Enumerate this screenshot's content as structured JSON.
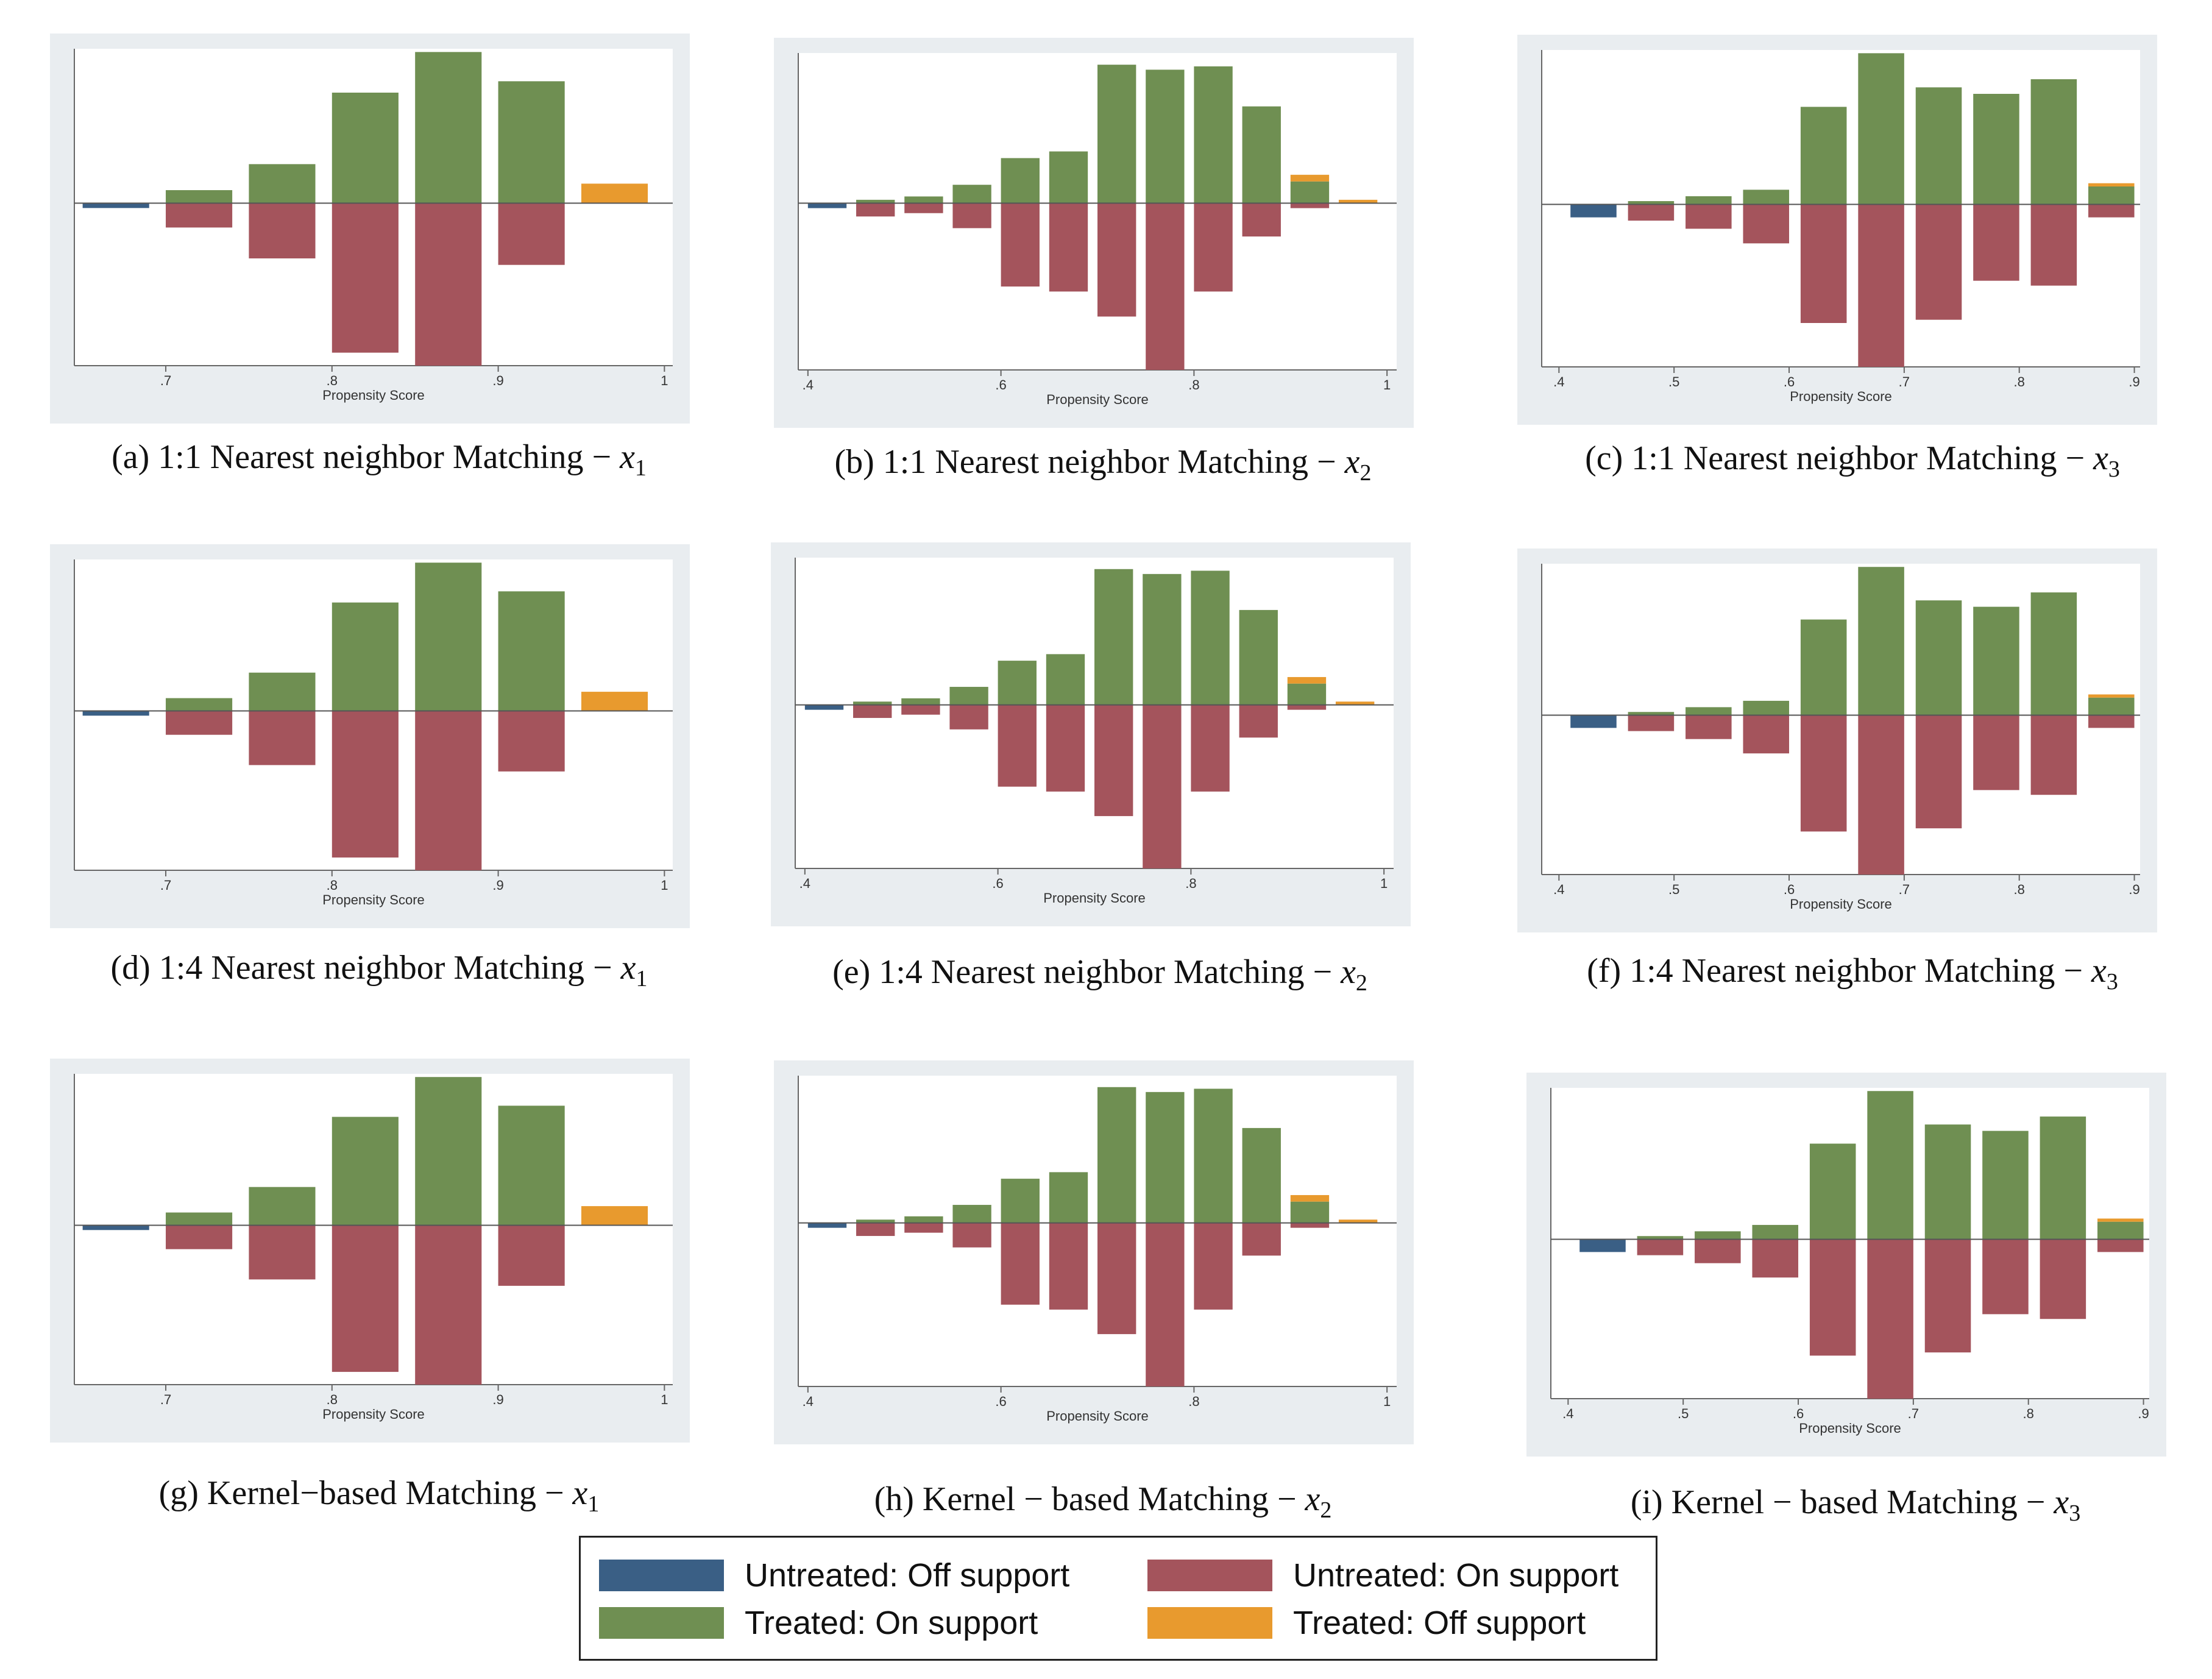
{
  "colors": {
    "untreated_off": "#3a5f85",
    "untreated_on": "#a4545c",
    "treated_on": "#6f8f52",
    "treated_off": "#e89a2e"
  },
  "legend": {
    "items": [
      {
        "label": "Untreated: Off support",
        "color_key": "untreated_off"
      },
      {
        "label": "Untreated: On support",
        "color_key": "untreated_on"
      },
      {
        "label": "Treated: On support",
        "color_key": "treated_on"
      },
      {
        "label": "Treated: Off support",
        "color_key": "treated_off"
      }
    ]
  },
  "chart_data": [
    {
      "type": "bar",
      "panel": "a",
      "caption": {
        "letter": "(a)",
        "text": "1:1 Nearest neighbor  Matching",
        "var": "x",
        "sub": "1"
      },
      "xlabel": "Propensity Score",
      "xlim": [
        0.645,
        1.005
      ],
      "ylim": [
        -1.0,
        0.95
      ],
      "xticks": [
        0.7,
        0.8,
        0.9,
        1.0
      ],
      "xtick_labels": [
        ".7",
        ".8",
        ".9",
        "1"
      ],
      "bin_width": 0.04,
      "bars": [
        {
          "x": 0.67,
          "treated_on": 0,
          "treated_off": 0,
          "untreated_on": 0,
          "untreated_off": 0.03
        },
        {
          "x": 0.72,
          "treated_on": 0.08,
          "treated_off": 0,
          "untreated_on": 0.15,
          "untreated_off": 0
        },
        {
          "x": 0.77,
          "treated_on": 0.24,
          "treated_off": 0,
          "untreated_on": 0.34,
          "untreated_off": 0
        },
        {
          "x": 0.82,
          "treated_on": 0.68,
          "treated_off": 0,
          "untreated_on": 0.92,
          "untreated_off": 0
        },
        {
          "x": 0.87,
          "treated_on": 0.93,
          "treated_off": 0,
          "untreated_on": 1.0,
          "untreated_off": 0
        },
        {
          "x": 0.92,
          "treated_on": 0.75,
          "treated_off": 0,
          "untreated_on": 0.38,
          "untreated_off": 0
        },
        {
          "x": 0.97,
          "treated_on": 0,
          "treated_off": 0.12,
          "untreated_on": 0,
          "untreated_off": 0
        }
      ]
    },
    {
      "type": "bar",
      "panel": "b",
      "caption": {
        "letter": "(b)",
        "text": "1:1 Nearest neighbor  Matching",
        "var": "x",
        "sub": "2"
      },
      "xlabel": "Propensity Score",
      "xlim": [
        0.39,
        1.01
      ],
      "ylim": [
        -1.0,
        0.9
      ],
      "xticks": [
        0.4,
        0.6,
        0.8,
        1.0
      ],
      "xtick_labels": [
        ".4",
        ".6",
        ".8",
        "1"
      ],
      "bin_width": 0.04,
      "bars": [
        {
          "x": 0.42,
          "treated_on": 0,
          "treated_off": 0,
          "untreated_on": 0,
          "untreated_off": 0.03
        },
        {
          "x": 0.47,
          "treated_on": 0.02,
          "treated_off": 0,
          "untreated_on": 0.08,
          "untreated_off": 0
        },
        {
          "x": 0.52,
          "treated_on": 0.04,
          "treated_off": 0,
          "untreated_on": 0.06,
          "untreated_off": 0
        },
        {
          "x": 0.57,
          "treated_on": 0.11,
          "treated_off": 0,
          "untreated_on": 0.15,
          "untreated_off": 0
        },
        {
          "x": 0.62,
          "treated_on": 0.27,
          "treated_off": 0,
          "untreated_on": 0.5,
          "untreated_off": 0
        },
        {
          "x": 0.67,
          "treated_on": 0.31,
          "treated_off": 0,
          "untreated_on": 0.53,
          "untreated_off": 0
        },
        {
          "x": 0.72,
          "treated_on": 0.83,
          "treated_off": 0,
          "untreated_on": 0.68,
          "untreated_off": 0
        },
        {
          "x": 0.77,
          "treated_on": 0.8,
          "treated_off": 0,
          "untreated_on": 1.0,
          "untreated_off": 0
        },
        {
          "x": 0.82,
          "treated_on": 0.82,
          "treated_off": 0,
          "untreated_on": 0.53,
          "untreated_off": 0
        },
        {
          "x": 0.87,
          "treated_on": 0.58,
          "treated_off": 0,
          "untreated_on": 0.2,
          "untreated_off": 0
        },
        {
          "x": 0.92,
          "treated_on": 0.13,
          "treated_off": 0.04,
          "untreated_on": 0.03,
          "untreated_off": 0
        },
        {
          "x": 0.97,
          "treated_on": 0,
          "treated_off": 0.02,
          "untreated_on": 0,
          "untreated_off": 0
        }
      ]
    },
    {
      "type": "bar",
      "panel": "c",
      "caption": {
        "letter": "(c)",
        "text": "1:1 Nearest neighbor  Matching",
        "var": "x",
        "sub": "3"
      },
      "xlabel": "Propensity Score",
      "xlim": [
        0.385,
        0.905
      ],
      "ylim": [
        -1.0,
        0.95
      ],
      "xticks": [
        0.4,
        0.5,
        0.6,
        0.7,
        0.8,
        0.9
      ],
      "xtick_labels": [
        ".4",
        ".5",
        ".6",
        ".7",
        ".8",
        ".9"
      ],
      "bin_width": 0.04,
      "bars": [
        {
          "x": 0.43,
          "treated_on": 0,
          "treated_off": 0,
          "untreated_on": 0,
          "untreated_off": 0.08
        },
        {
          "x": 0.48,
          "treated_on": 0.02,
          "treated_off": 0,
          "untreated_on": 0.1,
          "untreated_off": 0
        },
        {
          "x": 0.53,
          "treated_on": 0.05,
          "treated_off": 0,
          "untreated_on": 0.15,
          "untreated_off": 0
        },
        {
          "x": 0.58,
          "treated_on": 0.09,
          "treated_off": 0,
          "untreated_on": 0.24,
          "untreated_off": 0
        },
        {
          "x": 0.63,
          "treated_on": 0.6,
          "treated_off": 0,
          "untreated_on": 0.73,
          "untreated_off": 0
        },
        {
          "x": 0.68,
          "treated_on": 0.93,
          "treated_off": 0,
          "untreated_on": 1.0,
          "untreated_off": 0
        },
        {
          "x": 0.73,
          "treated_on": 0.72,
          "treated_off": 0,
          "untreated_on": 0.71,
          "untreated_off": 0
        },
        {
          "x": 0.78,
          "treated_on": 0.68,
          "treated_off": 0,
          "untreated_on": 0.47,
          "untreated_off": 0
        },
        {
          "x": 0.83,
          "treated_on": 0.77,
          "treated_off": 0,
          "untreated_on": 0.5,
          "untreated_off": 0
        },
        {
          "x": 0.88,
          "treated_on": 0.11,
          "treated_off": 0.02,
          "untreated_on": 0.08,
          "untreated_off": 0
        }
      ]
    },
    {
      "type": "bar",
      "panel": "d",
      "caption": {
        "letter": "(d)",
        "text": "1:4 Nearest neighbor  Matching",
        "var": "x",
        "sub": "1"
      },
      "xlabel": "Propensity Score",
      "xlim": [
        0.645,
        1.005
      ],
      "ylim": [
        -1.0,
        0.95
      ],
      "xticks": [
        0.7,
        0.8,
        0.9,
        1.0
      ],
      "xtick_labels": [
        ".7",
        ".8",
        ".9",
        "1"
      ],
      "bin_width": 0.04,
      "bars": [
        {
          "x": 0.67,
          "treated_on": 0,
          "treated_off": 0,
          "untreated_on": 0,
          "untreated_off": 0.03
        },
        {
          "x": 0.72,
          "treated_on": 0.08,
          "treated_off": 0,
          "untreated_on": 0.15,
          "untreated_off": 0
        },
        {
          "x": 0.77,
          "treated_on": 0.24,
          "treated_off": 0,
          "untreated_on": 0.34,
          "untreated_off": 0
        },
        {
          "x": 0.82,
          "treated_on": 0.68,
          "treated_off": 0,
          "untreated_on": 0.92,
          "untreated_off": 0
        },
        {
          "x": 0.87,
          "treated_on": 0.93,
          "treated_off": 0,
          "untreated_on": 1.0,
          "untreated_off": 0
        },
        {
          "x": 0.92,
          "treated_on": 0.75,
          "treated_off": 0,
          "untreated_on": 0.38,
          "untreated_off": 0
        },
        {
          "x": 0.97,
          "treated_on": 0,
          "treated_off": 0.12,
          "untreated_on": 0,
          "untreated_off": 0
        }
      ]
    },
    {
      "type": "bar",
      "panel": "e",
      "caption": {
        "letter": "(e)",
        "text": "1:4 Nearest neighbor  Matching",
        "var": "x",
        "sub": "2"
      },
      "xlabel": "Propensity Score",
      "xlim": [
        0.39,
        1.01
      ],
      "ylim": [
        -1.0,
        0.9
      ],
      "xticks": [
        0.4,
        0.6,
        0.8,
        1.0
      ],
      "xtick_labels": [
        ".4",
        ".6",
        ".8",
        "1"
      ],
      "bin_width": 0.04,
      "bars": [
        {
          "x": 0.42,
          "treated_on": 0,
          "treated_off": 0,
          "untreated_on": 0,
          "untreated_off": 0.03
        },
        {
          "x": 0.47,
          "treated_on": 0.02,
          "treated_off": 0,
          "untreated_on": 0.08,
          "untreated_off": 0
        },
        {
          "x": 0.52,
          "treated_on": 0.04,
          "treated_off": 0,
          "untreated_on": 0.06,
          "untreated_off": 0
        },
        {
          "x": 0.57,
          "treated_on": 0.11,
          "treated_off": 0,
          "untreated_on": 0.15,
          "untreated_off": 0
        },
        {
          "x": 0.62,
          "treated_on": 0.27,
          "treated_off": 0,
          "untreated_on": 0.5,
          "untreated_off": 0
        },
        {
          "x": 0.67,
          "treated_on": 0.31,
          "treated_off": 0,
          "untreated_on": 0.53,
          "untreated_off": 0
        },
        {
          "x": 0.72,
          "treated_on": 0.83,
          "treated_off": 0,
          "untreated_on": 0.68,
          "untreated_off": 0
        },
        {
          "x": 0.77,
          "treated_on": 0.8,
          "treated_off": 0,
          "untreated_on": 1.0,
          "untreated_off": 0
        },
        {
          "x": 0.82,
          "treated_on": 0.82,
          "treated_off": 0,
          "untreated_on": 0.53,
          "untreated_off": 0
        },
        {
          "x": 0.87,
          "treated_on": 0.58,
          "treated_off": 0,
          "untreated_on": 0.2,
          "untreated_off": 0
        },
        {
          "x": 0.92,
          "treated_on": 0.13,
          "treated_off": 0.04,
          "untreated_on": 0.03,
          "untreated_off": 0
        },
        {
          "x": 0.97,
          "treated_on": 0,
          "treated_off": 0.02,
          "untreated_on": 0,
          "untreated_off": 0
        }
      ]
    },
    {
      "type": "bar",
      "panel": "f",
      "caption": {
        "letter": "(f)",
        "text": "1:4 Nearest neighbor  Matching",
        "var": "x",
        "sub": "3"
      },
      "xlabel": "Propensity Score",
      "xlim": [
        0.385,
        0.905
      ],
      "ylim": [
        -1.0,
        0.95
      ],
      "xticks": [
        0.4,
        0.5,
        0.6,
        0.7,
        0.8,
        0.9
      ],
      "xtick_labels": [
        ".4",
        ".5",
        ".6",
        ".7",
        ".8",
        ".9"
      ],
      "bin_width": 0.04,
      "bars": [
        {
          "x": 0.43,
          "treated_on": 0,
          "treated_off": 0,
          "untreated_on": 0,
          "untreated_off": 0.08
        },
        {
          "x": 0.48,
          "treated_on": 0.02,
          "treated_off": 0,
          "untreated_on": 0.1,
          "untreated_off": 0
        },
        {
          "x": 0.53,
          "treated_on": 0.05,
          "treated_off": 0,
          "untreated_on": 0.15,
          "untreated_off": 0
        },
        {
          "x": 0.58,
          "treated_on": 0.09,
          "treated_off": 0,
          "untreated_on": 0.24,
          "untreated_off": 0
        },
        {
          "x": 0.63,
          "treated_on": 0.6,
          "treated_off": 0,
          "untreated_on": 0.73,
          "untreated_off": 0
        },
        {
          "x": 0.68,
          "treated_on": 0.93,
          "treated_off": 0,
          "untreated_on": 1.0,
          "untreated_off": 0
        },
        {
          "x": 0.73,
          "treated_on": 0.72,
          "treated_off": 0,
          "untreated_on": 0.71,
          "untreated_off": 0
        },
        {
          "x": 0.78,
          "treated_on": 0.68,
          "treated_off": 0,
          "untreated_on": 0.47,
          "untreated_off": 0
        },
        {
          "x": 0.83,
          "treated_on": 0.77,
          "treated_off": 0,
          "untreated_on": 0.5,
          "untreated_off": 0
        },
        {
          "x": 0.88,
          "treated_on": 0.11,
          "treated_off": 0.02,
          "untreated_on": 0.08,
          "untreated_off": 0
        }
      ]
    },
    {
      "type": "bar",
      "panel": "g",
      "caption": {
        "letter": "(g)",
        "text": "Kernel−based Matching",
        "var": "x",
        "sub": "1"
      },
      "xlabel": "Propensity Score",
      "xlim": [
        0.645,
        1.005
      ],
      "ylim": [
        -1.0,
        0.95
      ],
      "xticks": [
        0.7,
        0.8,
        0.9,
        1.0
      ],
      "xtick_labels": [
        ".7",
        ".8",
        ".9",
        "1"
      ],
      "bin_width": 0.04,
      "bars": [
        {
          "x": 0.67,
          "treated_on": 0,
          "treated_off": 0,
          "untreated_on": 0,
          "untreated_off": 0.03
        },
        {
          "x": 0.72,
          "treated_on": 0.08,
          "treated_off": 0,
          "untreated_on": 0.15,
          "untreated_off": 0
        },
        {
          "x": 0.77,
          "treated_on": 0.24,
          "treated_off": 0,
          "untreated_on": 0.34,
          "untreated_off": 0
        },
        {
          "x": 0.82,
          "treated_on": 0.68,
          "treated_off": 0,
          "untreated_on": 0.92,
          "untreated_off": 0
        },
        {
          "x": 0.87,
          "treated_on": 0.93,
          "treated_off": 0,
          "untreated_on": 1.0,
          "untreated_off": 0
        },
        {
          "x": 0.92,
          "treated_on": 0.75,
          "treated_off": 0,
          "untreated_on": 0.38,
          "untreated_off": 0
        },
        {
          "x": 0.97,
          "treated_on": 0,
          "treated_off": 0.12,
          "untreated_on": 0,
          "untreated_off": 0
        }
      ]
    },
    {
      "type": "bar",
      "panel": "h",
      "caption": {
        "letter": "(h)",
        "text": "Kernel − based Matching",
        "var": "x",
        "sub": "2"
      },
      "xlabel": "Propensity Score",
      "xlim": [
        0.39,
        1.01
      ],
      "ylim": [
        -1.0,
        0.9
      ],
      "xticks": [
        0.4,
        0.6,
        0.8,
        1.0
      ],
      "xtick_labels": [
        ".4",
        ".6",
        ".8",
        "1"
      ],
      "bin_width": 0.04,
      "bars": [
        {
          "x": 0.42,
          "treated_on": 0,
          "treated_off": 0,
          "untreated_on": 0,
          "untreated_off": 0.03
        },
        {
          "x": 0.47,
          "treated_on": 0.02,
          "treated_off": 0,
          "untreated_on": 0.08,
          "untreated_off": 0
        },
        {
          "x": 0.52,
          "treated_on": 0.04,
          "treated_off": 0,
          "untreated_on": 0.06,
          "untreated_off": 0
        },
        {
          "x": 0.57,
          "treated_on": 0.11,
          "treated_off": 0,
          "untreated_on": 0.15,
          "untreated_off": 0
        },
        {
          "x": 0.62,
          "treated_on": 0.27,
          "treated_off": 0,
          "untreated_on": 0.5,
          "untreated_off": 0
        },
        {
          "x": 0.67,
          "treated_on": 0.31,
          "treated_off": 0,
          "untreated_on": 0.53,
          "untreated_off": 0
        },
        {
          "x": 0.72,
          "treated_on": 0.83,
          "treated_off": 0,
          "untreated_on": 0.68,
          "untreated_off": 0
        },
        {
          "x": 0.77,
          "treated_on": 0.8,
          "treated_off": 0,
          "untreated_on": 1.0,
          "untreated_off": 0
        },
        {
          "x": 0.82,
          "treated_on": 0.82,
          "treated_off": 0,
          "untreated_on": 0.53,
          "untreated_off": 0
        },
        {
          "x": 0.87,
          "treated_on": 0.58,
          "treated_off": 0,
          "untreated_on": 0.2,
          "untreated_off": 0
        },
        {
          "x": 0.92,
          "treated_on": 0.13,
          "treated_off": 0.04,
          "untreated_on": 0.03,
          "untreated_off": 0
        },
        {
          "x": 0.97,
          "treated_on": 0,
          "treated_off": 0.02,
          "untreated_on": 0,
          "untreated_off": 0
        }
      ]
    },
    {
      "type": "bar",
      "panel": "i",
      "caption": {
        "letter": "(i)",
        "text": "Kernel − based Matching",
        "var": "x",
        "sub": "3"
      },
      "xlabel": "Propensity Score",
      "xlim": [
        0.385,
        0.905
      ],
      "ylim": [
        -1.0,
        0.95
      ],
      "xticks": [
        0.4,
        0.5,
        0.6,
        0.7,
        0.8,
        0.9
      ],
      "xtick_labels": [
        ".4",
        ".5",
        ".6",
        ".7",
        ".8",
        ".9"
      ],
      "bin_width": 0.04,
      "bars": [
        {
          "x": 0.43,
          "treated_on": 0,
          "treated_off": 0,
          "untreated_on": 0,
          "untreated_off": 0.08
        },
        {
          "x": 0.48,
          "treated_on": 0.02,
          "treated_off": 0,
          "untreated_on": 0.1,
          "untreated_off": 0
        },
        {
          "x": 0.53,
          "treated_on": 0.05,
          "treated_off": 0,
          "untreated_on": 0.15,
          "untreated_off": 0
        },
        {
          "x": 0.58,
          "treated_on": 0.09,
          "treated_off": 0,
          "untreated_on": 0.24,
          "untreated_off": 0
        },
        {
          "x": 0.63,
          "treated_on": 0.6,
          "treated_off": 0,
          "untreated_on": 0.73,
          "untreated_off": 0
        },
        {
          "x": 0.68,
          "treated_on": 0.93,
          "treated_off": 0,
          "untreated_on": 1.0,
          "untreated_off": 0
        },
        {
          "x": 0.73,
          "treated_on": 0.72,
          "treated_off": 0,
          "untreated_on": 0.71,
          "untreated_off": 0
        },
        {
          "x": 0.78,
          "treated_on": 0.68,
          "treated_off": 0,
          "untreated_on": 0.47,
          "untreated_off": 0
        },
        {
          "x": 0.83,
          "treated_on": 0.77,
          "treated_off": 0,
          "untreated_on": 0.5,
          "untreated_off": 0
        },
        {
          "x": 0.88,
          "treated_on": 0.11,
          "treated_off": 0.02,
          "untreated_on": 0.08,
          "untreated_off": 0
        }
      ]
    }
  ]
}
